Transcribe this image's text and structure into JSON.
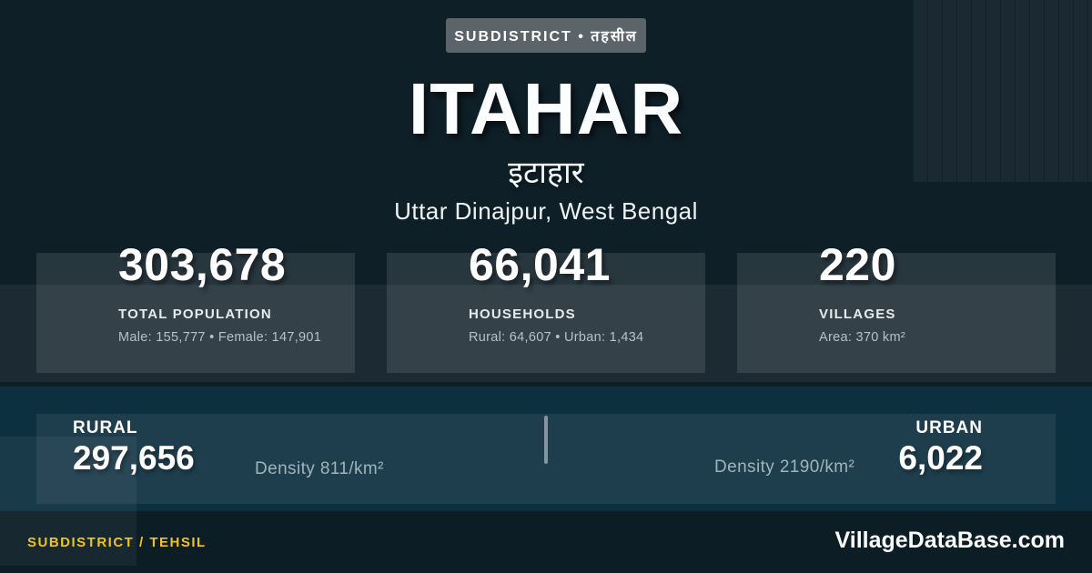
{
  "badge": {
    "label": "SUBDISTRICT • तहसील"
  },
  "header": {
    "title": "ITAHAR",
    "title_local": "इटाहार",
    "location": "Uttar Dinajpur, West Bengal"
  },
  "stats": [
    {
      "value": "303,678",
      "label": "TOTAL POPULATION",
      "detail": "Male: 155,777 • Female: 147,901"
    },
    {
      "value": "66,041",
      "label": "HOUSEHOLDS",
      "detail": "Rural: 64,607 • Urban: 1,434"
    },
    {
      "value": "220",
      "label": "VILLAGES",
      "detail": "Area: 370 km²"
    }
  ],
  "split": {
    "rural_label": "RURAL",
    "rural_value": "297,656",
    "rural_density": "Density 811/km²",
    "urban_label": "URBAN",
    "urban_value": "6,022",
    "urban_density": "Density 2190/km²"
  },
  "footer": {
    "left_label": "SUBDISTRICT / TEHSIL",
    "site": "VillageDataBase.com"
  },
  "colors": {
    "background": "#0f1f28",
    "section_blue": "#0d3040",
    "footer_background": "#0c1d25",
    "badge_gray": "#5b6569",
    "accent_yellow": "#f2c21d",
    "text_primary": "#ffffff",
    "text_muted": "#b5c2c8",
    "density_text": "#a0b4be"
  }
}
